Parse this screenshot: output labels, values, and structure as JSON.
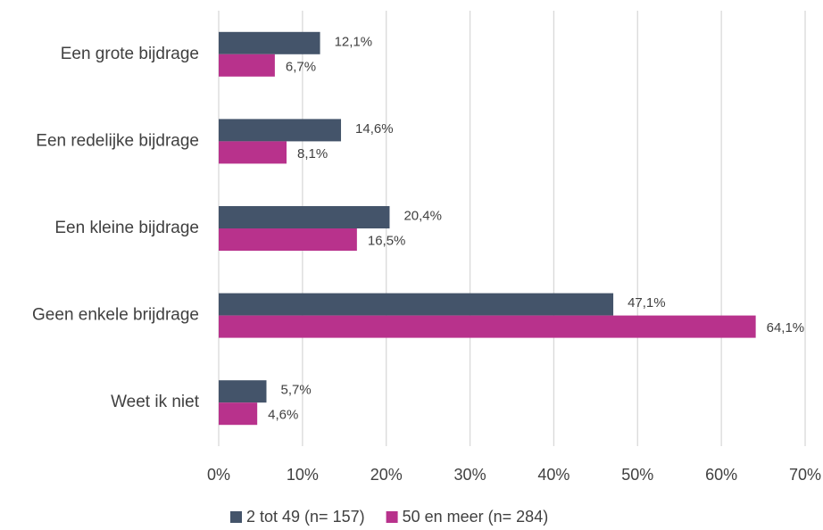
{
  "chart_data": {
    "type": "hbar",
    "categories": [
      "Een grote bijdrage",
      "Een redelijke bijdrage",
      "Een kleine bijdrage",
      "Geen enkele brijdrage",
      "Weet ik niet"
    ],
    "series": [
      {
        "name": "2 tot 49 (n= 157)",
        "color": "#44546a",
        "values": [
          12.1,
          14.6,
          20.4,
          47.1,
          5.7
        ],
        "value_labels": [
          "12,1%",
          "14,6%",
          "20,4%",
          "47,1%",
          "5,7%"
        ]
      },
      {
        "name": "50 en meer (n= 284)",
        "color": "#b8328c",
        "values": [
          6.7,
          8.1,
          16.5,
          64.1,
          4.6
        ],
        "value_labels": [
          "6,7%",
          "8,1%",
          "16,5%",
          "64,1%",
          "4,6%"
        ]
      }
    ],
    "xlim": [
      0,
      70
    ],
    "xticks": [
      {
        "value": 0,
        "label": "0%"
      },
      {
        "value": 10,
        "label": "10%"
      },
      {
        "value": 20,
        "label": "20%"
      },
      {
        "value": 30,
        "label": "30%"
      },
      {
        "value": 40,
        "label": "40%"
      },
      {
        "value": 50,
        "label": "50%"
      },
      {
        "value": 60,
        "label": "60%"
      },
      {
        "value": 70,
        "label": "70%"
      }
    ],
    "grid": true,
    "legend": "bottom"
  }
}
